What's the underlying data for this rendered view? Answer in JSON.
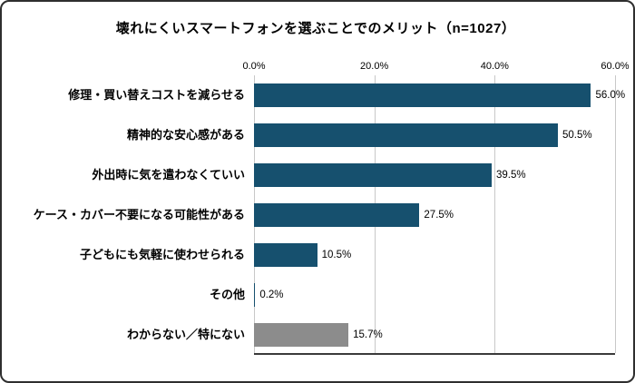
{
  "chart_data": {
    "type": "bar",
    "orientation": "horizontal",
    "title": "壊れにくいスマートフォンを選ぶことでのメリット（n=1027）",
    "categories": [
      "修理・買い替えコストを減らせる",
      "精神的な安心感がある",
      "外出時に気を遣わなくていい",
      "ケース・カバー不要になる可能性がある",
      "子どもにも気軽に使わせられる",
      "その他",
      "わからない／特にない"
    ],
    "values": [
      56.0,
      50.5,
      39.5,
      27.5,
      10.5,
      0.2,
      15.7
    ],
    "value_labels": [
      "56.0%",
      "50.5%",
      "39.5%",
      "27.5%",
      "10.5%",
      "0.2%",
      "15.7%"
    ],
    "x_ticks": [
      "0.0%",
      "20.0%",
      "40.0%",
      "60.0%"
    ],
    "x_tick_values": [
      0,
      20,
      40,
      60
    ],
    "xlim": [
      0,
      60
    ],
    "xlabel": "",
    "ylabel": "",
    "grid": "vertical",
    "legend": "none",
    "bar_colors": [
      "#16506e",
      "#16506e",
      "#16506e",
      "#16506e",
      "#16506e",
      "#16506e",
      "#8c8c8c"
    ],
    "accent_color": "#16506e",
    "neutral_color": "#8c8c8c"
  }
}
